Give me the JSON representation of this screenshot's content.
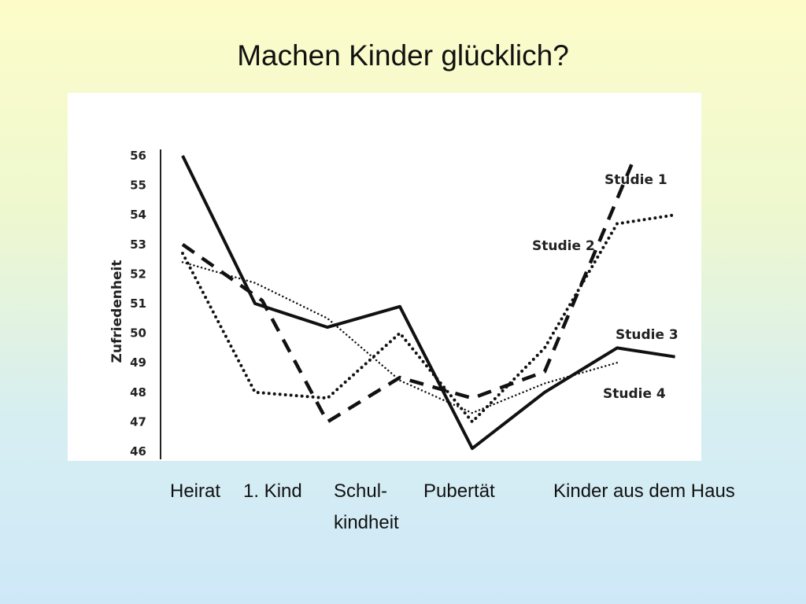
{
  "title": "Machen Kinder glücklich?",
  "chart_data": {
    "type": "line",
    "ylabel": "Zufriedenheit",
    "ylim": [
      46,
      56
    ],
    "yticks": [
      "46",
      "47",
      "48",
      "49",
      "50",
      "51",
      "52",
      "53",
      "54",
      "55",
      "56"
    ],
    "x": [
      0,
      1,
      2,
      3,
      4,
      5,
      6
    ],
    "categories": [
      {
        "line1": "Heirat",
        "line2": ""
      },
      {
        "line1": "1. Kind",
        "line2": ""
      },
      {
        "line1": "Schul-",
        "line2": "kindheit"
      },
      {
        "line1": "Pubertät",
        "line2": ""
      },
      {
        "line1": "Kinder aus dem Haus",
        "line2": ""
      }
    ],
    "series": [
      {
        "name": "Studie 1",
        "style": "dashed",
        "points": [
          [
            0,
            53.0
          ],
          [
            1.1,
            51.1
          ],
          [
            2.0,
            47.0
          ],
          [
            3.0,
            48.5
          ],
          [
            4.0,
            47.8
          ],
          [
            5.0,
            48.7
          ],
          [
            6.2,
            55.7
          ]
        ]
      },
      {
        "name": "Studie 2",
        "style": "dotted",
        "points": [
          [
            0,
            52.7
          ],
          [
            1.0,
            48.0
          ],
          [
            2.0,
            47.8
          ],
          [
            3.0,
            50.0
          ],
          [
            4.0,
            47.0
          ],
          [
            5.0,
            49.5
          ],
          [
            6.0,
            53.7
          ],
          [
            6.8,
            54.0
          ]
        ]
      },
      {
        "name": "Studie 3",
        "style": "solid",
        "points": [
          [
            0,
            56.0
          ],
          [
            1.0,
            51.0
          ],
          [
            2.0,
            50.2
          ],
          [
            3.0,
            50.9
          ],
          [
            4.0,
            46.1
          ],
          [
            5.0,
            48.0
          ],
          [
            6.0,
            49.5
          ],
          [
            6.8,
            49.2
          ]
        ]
      },
      {
        "name": "Studie 4",
        "style": "fine-dotted",
        "points": [
          [
            0,
            52.4
          ],
          [
            1.0,
            51.7
          ],
          [
            2.0,
            50.5
          ],
          [
            3.0,
            48.4
          ],
          [
            4.0,
            47.3
          ],
          [
            5.0,
            48.3
          ],
          [
            6.0,
            49.0
          ]
        ]
      }
    ],
    "line_color": "#111111",
    "grid": false,
    "legend": "inline labels at line ends"
  }
}
